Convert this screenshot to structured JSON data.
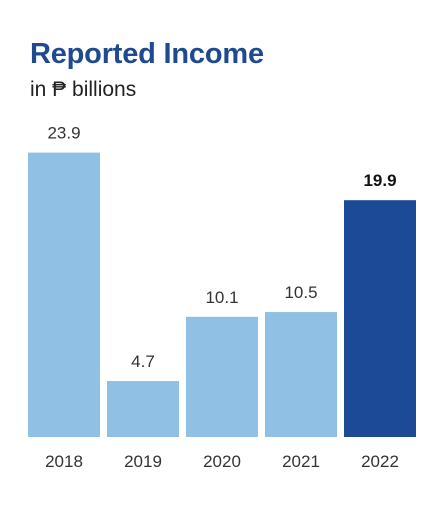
{
  "chart_data": {
    "type": "bar",
    "title": "Reported Income",
    "subtitle": "in ₱ billions",
    "categories": [
      "2018",
      "2019",
      "2020",
      "2021",
      "2022"
    ],
    "values": [
      23.9,
      4.7,
      10.1,
      10.5,
      19.9
    ],
    "value_labels": [
      "23.9",
      "4.7",
      "10.1",
      "10.5",
      "19.9"
    ],
    "highlight_index": 4,
    "colors": {
      "bar": "#90c0e4",
      "highlight": "#1c4a96",
      "title": "#1f4a8f"
    },
    "grid": false,
    "legend": "none"
  }
}
